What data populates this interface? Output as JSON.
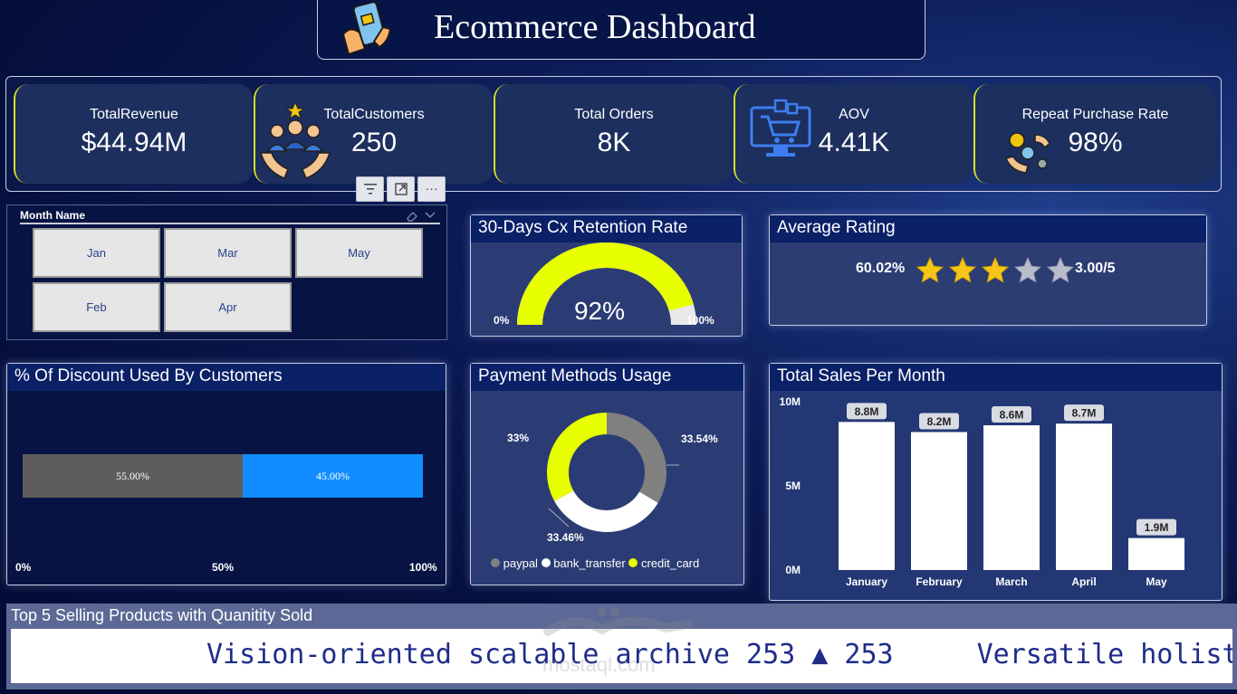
{
  "header": {
    "title": "Ecommerce Dashboard",
    "icon": "mobile-shopping-icon"
  },
  "kpis": [
    {
      "label": "TotalRevenue",
      "value": "$44.94M"
    },
    {
      "label": "TotalCustomers",
      "value": "250",
      "icon": "customers-hands-icon"
    },
    {
      "label": "Total Orders",
      "value": "8K"
    },
    {
      "label": "AOV",
      "value": "4.41K",
      "icon": "cart-monitor-icon"
    },
    {
      "label": "Repeat Purchase Rate",
      "value": "98%",
      "icon": "money-exchange-icon"
    }
  ],
  "toolbar": {
    "filter_icon": "filter-icon",
    "focus_icon": "focus-mode-icon",
    "more_label": "···"
  },
  "slicer": {
    "title": "Month Name",
    "months": [
      "Jan",
      "Mar",
      "May",
      "Feb",
      "Apr"
    ]
  },
  "retention": {
    "title": "30-Days Cx Retention Rate",
    "value_label": "92%",
    "value": 92,
    "min_label": "0%",
    "max_label": "100%",
    "color": "#e8ff00"
  },
  "rating": {
    "title": "Average Rating",
    "percent_label": "60.02%",
    "score_label": "3.00/5",
    "stars_filled": 3,
    "stars_total": 5,
    "star_color": "#f5c518"
  },
  "discount": {
    "title": "% Of Discount Used By Customers",
    "segments": [
      {
        "label": "55.00%",
        "value": 55,
        "color": "#5e5c5c"
      },
      {
        "label": "45.00%",
        "value": 45,
        "color": "#118dff"
      }
    ],
    "ticks": [
      "0%",
      "50%",
      "100%"
    ]
  },
  "payment": {
    "title": "Payment Methods Usage",
    "slices": [
      {
        "name": "paypal",
        "label": "33.54%",
        "value": 33.54,
        "color": "#808080"
      },
      {
        "name": "bank_transfer",
        "label": "33.46%",
        "value": 33.46,
        "color": "#ffffff"
      },
      {
        "name": "credit_card",
        "label": "33%",
        "value": 33,
        "color": "#e8ff00"
      }
    ]
  },
  "chart_data": {
    "type": "bar",
    "title": "Total Sales Per Month",
    "categories": [
      "January",
      "February",
      "March",
      "April",
      "May"
    ],
    "values": [
      8.8,
      8.2,
      8.6,
      8.7,
      1.9
    ],
    "data_labels": [
      "8.8M",
      "8.2M",
      "8.6M",
      "8.7M",
      "1.9M"
    ],
    "yticks": [
      "0M",
      "5M",
      "10M"
    ],
    "ylim": [
      0,
      10
    ],
    "bar_color": "#ffffff"
  },
  "ticker": {
    "title": "Top 5 Selling Products with Quanitity Sold",
    "items": [
      "Vision-oriented scalable archive 253 ▲ 253",
      "Versatile holist"
    ]
  },
  "watermark": {
    "text": "mostaql.com"
  }
}
